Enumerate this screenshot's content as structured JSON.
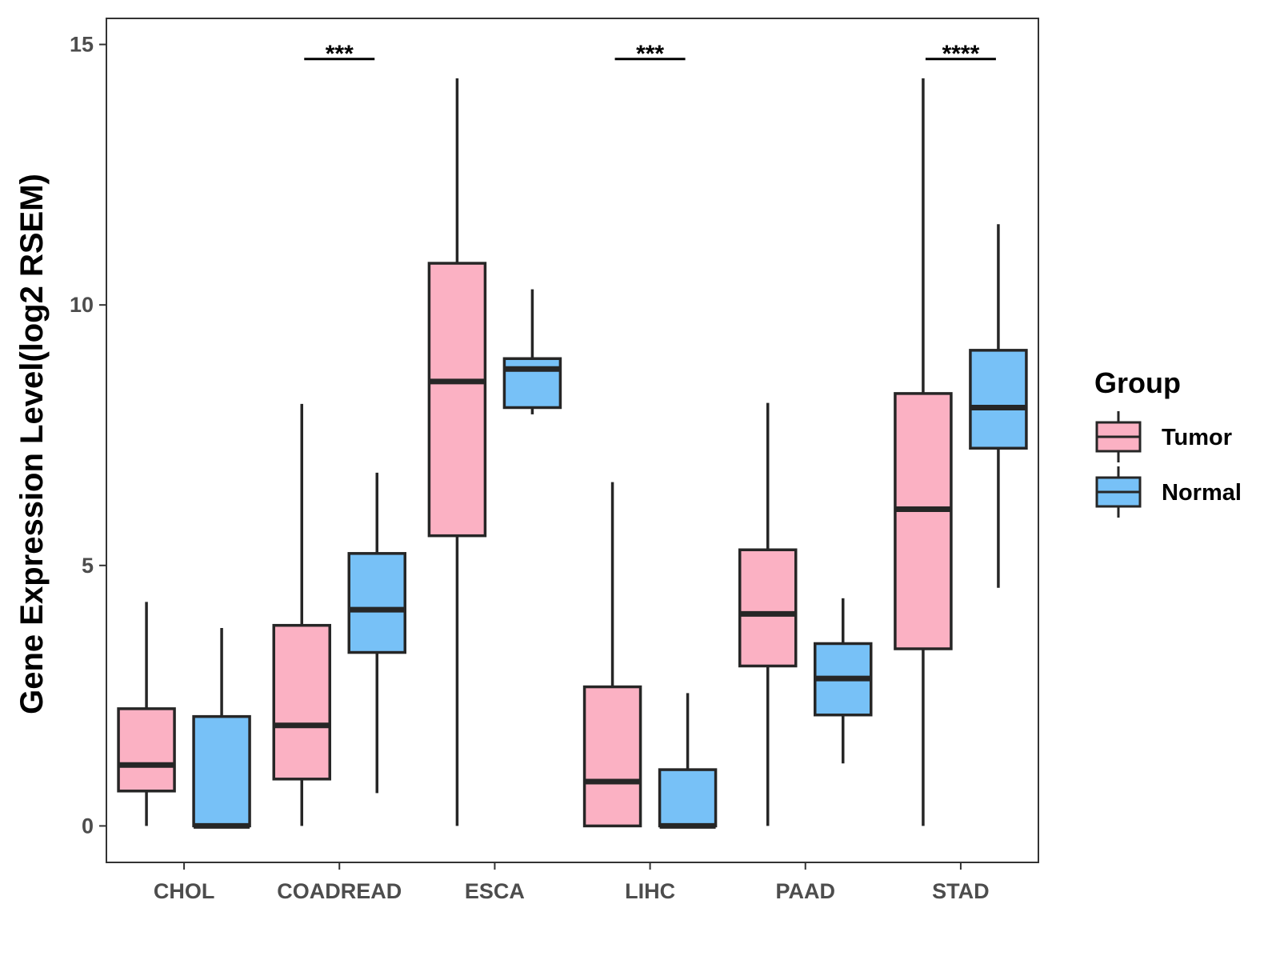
{
  "chart_data": {
    "type": "boxplot",
    "title": "",
    "xlabel": "",
    "ylabel": "Gene Expression Level(log2 RSEM)",
    "ylim": [
      -0.7,
      15.5
    ],
    "yticks": [
      0,
      5,
      10,
      15
    ],
    "ytick_labels": [
      "0",
      "5",
      "10",
      "15"
    ],
    "grid": false,
    "legend": {
      "title": "Group",
      "position": "right",
      "entries": [
        {
          "label": "Tumor",
          "color": "#fbb1c3"
        },
        {
          "label": "Normal",
          "color": "#77c1f7"
        }
      ]
    },
    "categories": [
      "CHOL",
      "COADREAD",
      "ESCA",
      "LIHC",
      "PAAD",
      "STAD"
    ],
    "series": [
      {
        "name": "Tumor",
        "color": "#fbb1c3",
        "boxes": [
          {
            "category": "CHOL",
            "min": 0,
            "q1": 0.67,
            "median": 1.17,
            "q3": 2.25,
            "max": 4.3
          },
          {
            "category": "COADREAD",
            "min": 0,
            "q1": 0.9,
            "median": 1.93,
            "q3": 3.85,
            "max": 8.1
          },
          {
            "category": "ESCA",
            "min": 0,
            "q1": 5.57,
            "median": 8.53,
            "q3": 10.8,
            "max": 14.35
          },
          {
            "category": "LIHC",
            "min": 0,
            "q1": 0,
            "median": 0.85,
            "q3": 2.67,
            "max": 6.6
          },
          {
            "category": "PAAD",
            "min": 0,
            "q1": 3.07,
            "median": 4.07,
            "q3": 5.3,
            "max": 8.12
          },
          {
            "category": "STAD",
            "min": 0,
            "q1": 3.4,
            "median": 6.08,
            "q3": 8.3,
            "max": 14.35
          }
        ]
      },
      {
        "name": "Normal",
        "color": "#77c1f7",
        "boxes": [
          {
            "category": "CHOL",
            "min": 0,
            "q1": 0,
            "median": 0,
            "q3": 2.1,
            "max": 3.8
          },
          {
            "category": "COADREAD",
            "min": 0.63,
            "q1": 3.33,
            "median": 4.15,
            "q3": 5.23,
            "max": 6.78
          },
          {
            "category": "ESCA",
            "min": 7.9,
            "q1": 8.03,
            "median": 8.77,
            "q3": 8.97,
            "max": 10.3
          },
          {
            "category": "LIHC",
            "min": 0,
            "q1": 0,
            "median": 0,
            "q3": 1.08,
            "max": 2.55
          },
          {
            "category": "PAAD",
            "min": 1.2,
            "q1": 2.13,
            "median": 2.83,
            "q3": 3.5,
            "max": 4.37
          },
          {
            "category": "STAD",
            "min": 4.57,
            "q1": 7.25,
            "median": 8.03,
            "q3": 9.13,
            "max": 11.55
          }
        ]
      }
    ],
    "annotations": [
      {
        "category": "COADREAD",
        "text": "***"
      },
      {
        "category": "LIHC",
        "text": "***"
      },
      {
        "category": "STAD",
        "text": "****"
      }
    ]
  }
}
